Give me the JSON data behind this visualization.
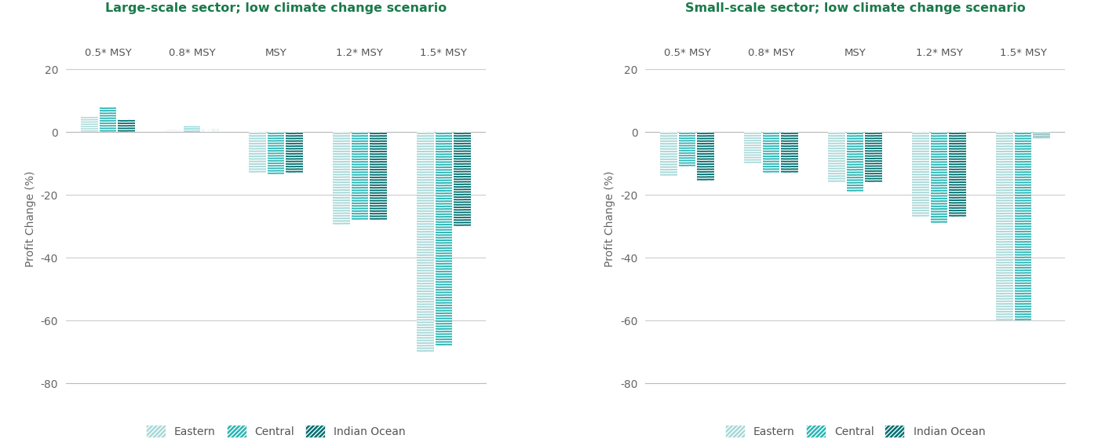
{
  "large_scale": {
    "title": "Large-scale sector; low climate change scenario",
    "categories": [
      "0.5* MSY",
      "0.8* MSY",
      "MSY",
      "1.2* MSY",
      "1.5* MSY"
    ],
    "eastern": [
      5.0,
      1.2,
      -13.0,
      -29.5,
      -70.0
    ],
    "central": [
      8.0,
      2.0,
      -13.5,
      -28.0,
      -68.0
    ],
    "indian_ocean": [
      4.0,
      1.0,
      -13.0,
      -28.0,
      -30.0
    ]
  },
  "small_scale": {
    "title": "Small-scale sector; low climate change scenario",
    "categories": [
      "0.5* MSY",
      "0.8* MSY",
      "MSY",
      "1.2* MSY",
      "1.5* MSY"
    ],
    "eastern": [
      -14.0,
      -10.0,
      -16.0,
      -27.0,
      -60.0
    ],
    "central": [
      -11.0,
      -13.0,
      -19.0,
      -29.0,
      -60.0
    ],
    "indian_ocean": [
      -15.5,
      -13.0,
      -16.0,
      -27.0,
      -2.0
    ]
  },
  "colors": {
    "eastern": "#a8d8d8",
    "central": "#2ab5b5",
    "indian_ocean": "#006f6f"
  },
  "title_color": "#1a7a4a",
  "ylabel": "Profit Change (%)",
  "ylim": [
    -80,
    25
  ],
  "yticks": [
    20,
    0,
    -20,
    -40,
    -60,
    -80
  ],
  "bar_width": 0.22,
  "legend_labels": [
    "Eastern",
    "Central",
    "Indian Ocean"
  ],
  "background_color": "#ffffff"
}
